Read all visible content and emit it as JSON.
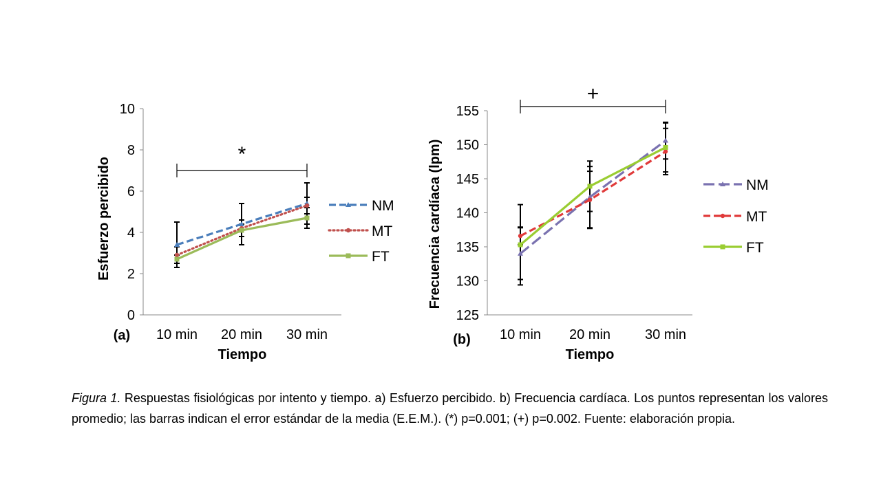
{
  "chart_data": [
    {
      "type": "line",
      "panel_label": "(a)",
      "xlabel": "Tiempo",
      "ylabel": "Esfuerzo percibido",
      "categories": [
        "10 min",
        "20 min",
        "30 min"
      ],
      "ylim": [
        0,
        10
      ],
      "yticks": [
        "0",
        "2",
        "4",
        "6",
        "8",
        "10"
      ],
      "grid": false,
      "legend_position": "right",
      "significance": {
        "label": "*",
        "from": "10 min",
        "to": "30 min",
        "y": 7.0
      },
      "series": [
        {
          "name": "NM",
          "values": [
            3.4,
            4.4,
            5.4
          ],
          "error": [
            1.1,
            1.0,
            1.0
          ],
          "color": "#4a7ebb",
          "style": "dashed",
          "marker": "triangle"
        },
        {
          "name": "MT",
          "values": [
            2.9,
            4.2,
            5.3
          ],
          "error": [
            0.4,
            0.4,
            0.4
          ],
          "color": "#c0504d",
          "style": "dotted",
          "marker": "circle"
        },
        {
          "name": "FT",
          "values": [
            2.7,
            4.1,
            4.7
          ],
          "error": [
            0.2,
            0.3,
            0.5
          ],
          "color": "#9bbb59",
          "style": "solid",
          "marker": "square"
        }
      ]
    },
    {
      "type": "line",
      "panel_label": "(b)",
      "xlabel": "Tiempo",
      "ylabel": "Frecuencia cardíaca (lpm)",
      "categories": [
        "10 min",
        "20 min",
        "30 min"
      ],
      "ylim": [
        125,
        155
      ],
      "yticks": [
        "125",
        "130",
        "135",
        "140",
        "145",
        "150",
        "155"
      ],
      "grid": false,
      "legend_position": "right",
      "significance": {
        "label": "+",
        "from": "10 min",
        "to": "30 min",
        "y": 155.3
      },
      "series": [
        {
          "name": "NM",
          "values": [
            134.0,
            142.3,
            150.6
          ],
          "error": [
            3.8,
            4.5,
            2.7
          ],
          "color": "#7a72b0",
          "style": "longdash",
          "marker": "triangle"
        },
        {
          "name": "MT",
          "values": [
            136.6,
            141.9,
            149.0
          ],
          "error": [
            1.3,
            4.2,
            3.4
          ],
          "color": "#e03a3a",
          "style": "dashed",
          "marker": "circle"
        },
        {
          "name": "FT",
          "values": [
            135.3,
            143.9,
            149.6
          ],
          "error": [
            5.9,
            3.7,
            3.6
          ],
          "color": "#9acd32",
          "style": "solid",
          "marker": "square"
        }
      ]
    }
  ],
  "caption": {
    "prefix": "Figura 1.",
    "text": " Respuestas fisiológicas por intento y tiempo. a) Esfuerzo percibido. b) Frecuencia cardíaca. Los puntos representan los valores promedio; las barras indican el error estándar de la media (E.E.M.). (*) p=0.001; (+) p=0.002. Fuente: elaboración propia."
  }
}
